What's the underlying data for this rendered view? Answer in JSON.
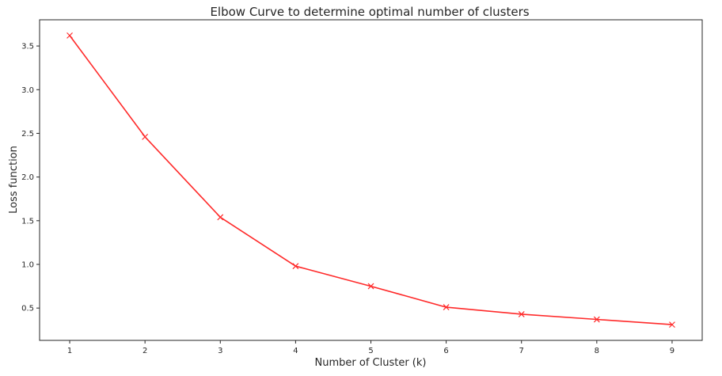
{
  "chart_data": {
    "type": "line",
    "title": "Elbow Curve to determine optimal number of clusters",
    "xlabel": "Number of Cluster (k)",
    "ylabel": "Loss function",
    "x": [
      1,
      2,
      3,
      4,
      5,
      6,
      7,
      8,
      9
    ],
    "series": [
      {
        "values": [
          3.62,
          2.46,
          1.54,
          0.98,
          0.75,
          0.51,
          0.43,
          0.37,
          0.31
        ],
        "color": "#ff2a2a",
        "marker": "x"
      }
    ],
    "xticks": [
      "1",
      "2",
      "3",
      "4",
      "5",
      "6",
      "7",
      "8",
      "9"
    ],
    "yticks": [
      "0.5",
      "1.0",
      "1.5",
      "2.0",
      "2.5",
      "3.0",
      "3.5"
    ],
    "xlim": [
      0.6,
      9.4
    ],
    "ylim": [
      0.13,
      3.8
    ],
    "grid": false,
    "legend": "none"
  }
}
